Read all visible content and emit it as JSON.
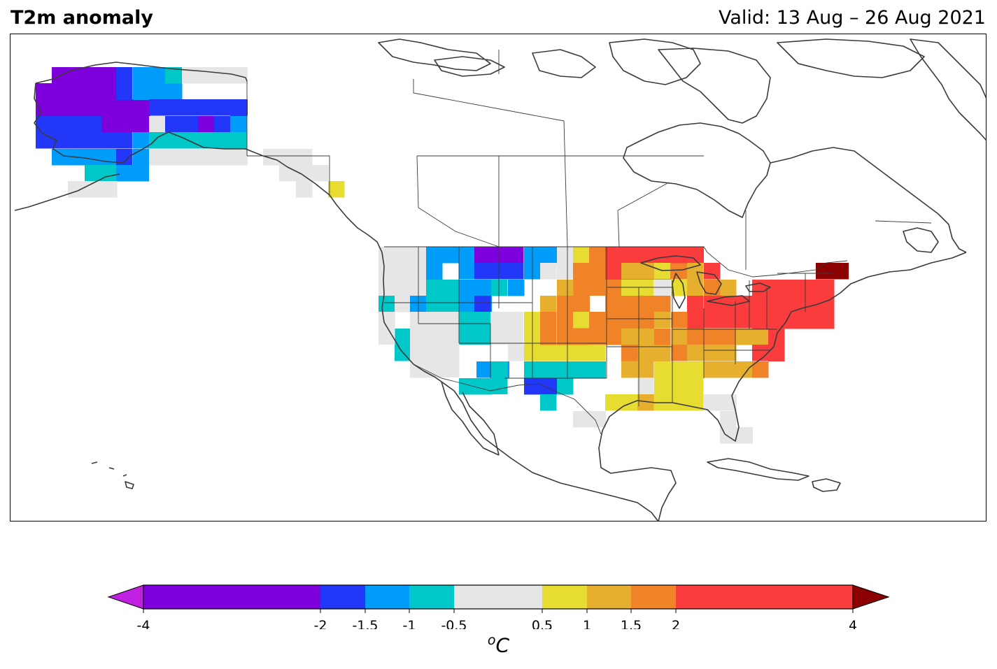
{
  "title": "T2m anomaly",
  "valid": "Valid: 13 Aug – 26 Aug 2021",
  "colorbar": {
    "unit_super": "o",
    "unit_main": "C",
    "ticks": [
      "-4",
      "-2",
      "-1.5",
      "-1",
      "-0.5",
      "0.5",
      "1",
      "1.5",
      "2",
      "4"
    ],
    "bins": [
      {
        "from": -4,
        "to": -2,
        "color": "#7e00dc"
      },
      {
        "from": -2,
        "to": -1.5,
        "color": "#2237f7"
      },
      {
        "from": -1.5,
        "to": -1,
        "color": "#009cf9"
      },
      {
        "from": -1,
        "to": -0.5,
        "color": "#00c8c8"
      },
      {
        "from": -0.5,
        "to": 0.5,
        "color": "#e6e6e6"
      },
      {
        "from": 0.5,
        "to": 1,
        "color": "#e6dc32"
      },
      {
        "from": 1,
        "to": 1.5,
        "color": "#e6af2d"
      },
      {
        "from": 1.5,
        "to": 2,
        "color": "#f08228"
      },
      {
        "from": 2,
        "to": 4,
        "color": "#fa3c3c"
      }
    ],
    "extend_low_color": "#c020e0",
    "extend_high_color": "#8b0000"
  },
  "map_layers": [
    "coastlines",
    "country-borders",
    "state-province-borders",
    "anomaly-grid"
  ]
}
